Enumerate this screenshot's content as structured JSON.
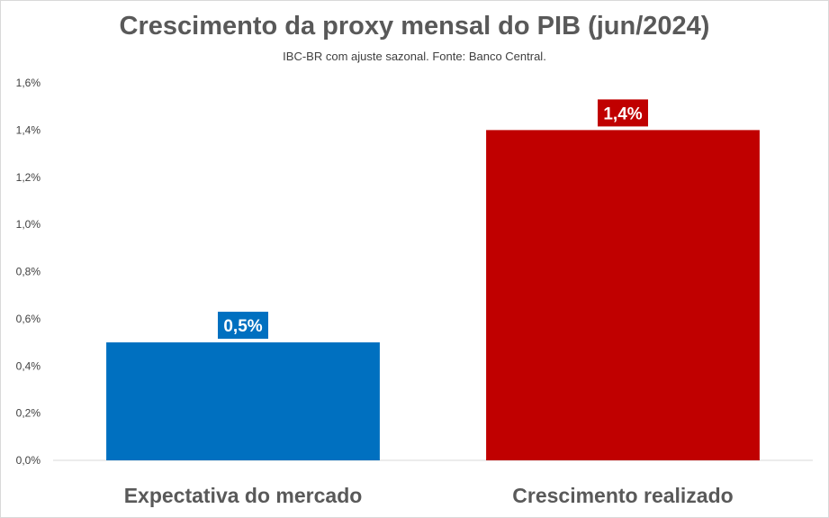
{
  "chart_data": {
    "type": "bar",
    "title": "Crescimento da proxy mensal do PIB (jun/2024)",
    "subtitle": "IBC-BR com ajuste sazonal. Fonte: Banco Central.",
    "categories": [
      "Expectativa do mercado",
      "Crescimento realizado"
    ],
    "values": [
      0.5,
      1.4
    ],
    "data_labels": [
      "0,5%",
      "1,4%"
    ],
    "colors": [
      "#0070c0",
      "#c00000"
    ],
    "ylim": [
      0,
      1.6
    ],
    "yticks": [
      0,
      0.2,
      0.4,
      0.6,
      0.8,
      1.0,
      1.2,
      1.4,
      1.6
    ],
    "ytick_labels": [
      "0,0%",
      "0,2%",
      "0,4%",
      "0,6%",
      "0,8%",
      "1,0%",
      "1,2%",
      "1,4%",
      "1,6%"
    ],
    "grid": false,
    "legend": "none",
    "xlabel": "",
    "ylabel": ""
  }
}
